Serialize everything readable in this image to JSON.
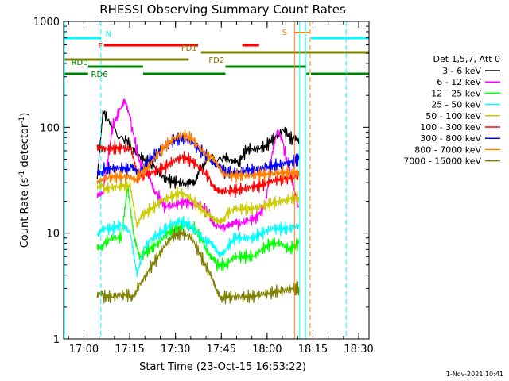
{
  "chart_data": {
    "type": "line",
    "title": "RHESSI Observing Summary Count Rates",
    "xlabel": "Start Time (23-Oct-15 16:53:22)",
    "ylabel_main": "Count Rate (s",
    "ylabel_sup1": "-1",
    "ylabel_mid": " detector",
    "ylabel_sup2": "-1",
    "ylabel_end": ")",
    "x_unit": "minutes since 16:53:22",
    "xlim": [
      0,
      100
    ],
    "ylim": [
      1,
      1000
    ],
    "y_scale": "log",
    "x_ticks": [
      {
        "v": 6.63,
        "label": "17:00"
      },
      {
        "v": 21.63,
        "label": "17:15"
      },
      {
        "v": 36.63,
        "label": "17:30"
      },
      {
        "v": 51.63,
        "label": "17:45"
      },
      {
        "v": 66.63,
        "label": "18:00"
      },
      {
        "v": 81.63,
        "label": "18:15"
      },
      {
        "v": 96.63,
        "label": "18:30"
      }
    ],
    "y_ticks": [
      {
        "v": 1,
        "label": "1"
      },
      {
        "v": 10,
        "label": "10"
      },
      {
        "v": 100,
        "label": "100"
      },
      {
        "v": 1000,
        "label": "1000"
      }
    ],
    "legend_title": "Det 1,5,7, Att 0",
    "series": [
      {
        "name": "3 - 6 keV",
        "color": "#000000",
        "segments": [
          [
            [
              11,
              30
            ],
            [
              13,
              140
            ],
            [
              16,
              100
            ],
            [
              20,
              80
            ],
            [
              23,
              60
            ],
            [
              26,
              50
            ],
            [
              29,
              45
            ],
            [
              32,
              35
            ],
            [
              35,
              31
            ],
            [
              38,
              30
            ],
            [
              41,
              29
            ],
            [
              43,
              27
            ],
            [
              45,
              40
            ],
            [
              48,
              55
            ],
            [
              52,
              53
            ],
            [
              55,
              48
            ],
            [
              57,
              45
            ],
            [
              60,
              62
            ],
            [
              63,
              62
            ],
            [
              66,
              65
            ],
            [
              69,
              80
            ],
            [
              72,
              95
            ],
            [
              75,
              75
            ],
            [
              77,
              70
            ]
          ]
        ]
      },
      {
        "name": "6 - 12 keV",
        "color": "#ff00ff",
        "segments": [
          [
            [
              11,
              22
            ],
            [
              13,
              25
            ],
            [
              16,
              100
            ],
            [
              19,
              160
            ],
            [
              20,
              180
            ],
            [
              22,
              110
            ],
            [
              25,
              45
            ],
            [
              28,
              35
            ],
            [
              30,
              25
            ],
            [
              33,
              18
            ],
            [
              36,
              18
            ],
            [
              39,
              20
            ],
            [
              42,
              19
            ],
            [
              45,
              18
            ],
            [
              48,
              15
            ],
            [
              50,
              12
            ],
            [
              53,
              11
            ],
            [
              55,
              11
            ],
            [
              57,
              12
            ],
            [
              60,
              13
            ],
            [
              63,
              14
            ],
            [
              66,
              18
            ],
            [
              68,
              50
            ],
            [
              70,
              85
            ],
            [
              72,
              65
            ],
            [
              75,
              30
            ],
            [
              77,
              18
            ]
          ]
        ]
      },
      {
        "name": "12 - 25 keV",
        "color": "#00ff00",
        "segments": [
          [
            [
              11,
              8
            ],
            [
              13,
              8
            ],
            [
              16,
              9
            ],
            [
              19,
              9
            ],
            [
              21,
              25
            ],
            [
              23,
              9
            ],
            [
              25,
              6
            ],
            [
              28,
              7
            ],
            [
              31,
              8
            ],
            [
              34,
              10
            ],
            [
              37,
              11
            ],
            [
              40,
              12
            ],
            [
              43,
              11
            ],
            [
              46,
              8
            ],
            [
              48,
              6
            ],
            [
              50,
              5
            ],
            [
              53,
              5
            ],
            [
              56,
              6
            ],
            [
              59,
              6
            ],
            [
              62,
              6
            ],
            [
              65,
              7
            ],
            [
              68,
              8
            ],
            [
              71,
              8
            ],
            [
              74,
              7
            ],
            [
              77,
              8
            ]
          ]
        ]
      },
      {
        "name": "25 - 50 keV",
        "color": "#00ffff",
        "segments": [
          [
            [
              11,
              10
            ],
            [
              13,
              11
            ],
            [
              16,
              11
            ],
            [
              19,
              12
            ],
            [
              22,
              10
            ],
            [
              24,
              4.5
            ],
            [
              26,
              7
            ],
            [
              29,
              9
            ],
            [
              32,
              10
            ],
            [
              35,
              12
            ],
            [
              38,
              13
            ],
            [
              41,
              12
            ],
            [
              44,
              10
            ],
            [
              47,
              8
            ],
            [
              49,
              7
            ],
            [
              51,
              6
            ],
            [
              53,
              7
            ],
            [
              56,
              9
            ],
            [
              59,
              9
            ],
            [
              62,
              9
            ],
            [
              65,
              10
            ],
            [
              68,
              11
            ],
            [
              71,
              11
            ],
            [
              74,
              11
            ],
            [
              77,
              12
            ]
          ]
        ]
      },
      {
        "name": "50 - 100 keV",
        "color": "#cccc00",
        "segments": [
          [
            [
              11,
              25
            ],
            [
              13,
              26
            ],
            [
              16,
              27
            ],
            [
              19,
              28
            ],
            [
              22,
              28
            ],
            [
              24,
              12
            ],
            [
              26,
              15
            ],
            [
              29,
              17
            ],
            [
              32,
              20
            ],
            [
              35,
              22
            ],
            [
              38,
              24
            ],
            [
              41,
              22
            ],
            [
              44,
              18
            ],
            [
              47,
              15
            ],
            [
              49,
              14
            ],
            [
              51,
              14
            ],
            [
              53,
              15
            ],
            [
              56,
              17
            ],
            [
              59,
              17
            ],
            [
              62,
              17
            ],
            [
              65,
              18
            ],
            [
              68,
              19
            ],
            [
              71,
              20
            ],
            [
              74,
              21
            ],
            [
              77,
              22
            ]
          ]
        ]
      },
      {
        "name": "100 - 300 keV",
        "color": "#ff0000",
        "segments": [
          [
            [
              11,
              60
            ],
            [
              13,
              62
            ],
            [
              16,
              63
            ],
            [
              19,
              64
            ],
            [
              22,
              62
            ],
            [
              24,
              34
            ],
            [
              27,
              36
            ],
            [
              30,
              38
            ],
            [
              33,
              42
            ],
            [
              36,
              48
            ],
            [
              39,
              52
            ],
            [
              42,
              48
            ],
            [
              45,
              40
            ],
            [
              48,
              33
            ],
            [
              50,
              28
            ],
            [
              52,
              25
            ],
            [
              55,
              25
            ],
            [
              58,
              26
            ],
            [
              61,
              27
            ],
            [
              64,
              28
            ],
            [
              67,
              30
            ],
            [
              70,
              32
            ],
            [
              73,
              33
            ],
            [
              76,
              34
            ],
            [
              77,
              35
            ]
          ]
        ]
      },
      {
        "name": "300 - 800 keV",
        "color": "#0000ff",
        "segments": [
          [
            [
              11,
              40
            ],
            [
              13,
              40
            ],
            [
              16,
              41
            ],
            [
              19,
              41
            ],
            [
              22,
              40
            ],
            [
              24,
              36
            ],
            [
              27,
              45
            ],
            [
              30,
              55
            ],
            [
              33,
              65
            ],
            [
              36,
              75
            ],
            [
              39,
              78
            ],
            [
              42,
              72
            ],
            [
              45,
              60
            ],
            [
              48,
              50
            ],
            [
              50,
              42
            ],
            [
              52,
              38
            ],
            [
              55,
              38
            ],
            [
              58,
              38
            ],
            [
              61,
              39
            ],
            [
              64,
              40
            ],
            [
              67,
              42
            ],
            [
              70,
              44
            ],
            [
              73,
              46
            ],
            [
              76,
              48
            ],
            [
              77,
              50
            ]
          ]
        ]
      },
      {
        "name": "800 - 7000 keV",
        "color": "#ff8000",
        "segments": [
          [
            [
              11,
              33
            ],
            [
              13,
              33
            ],
            [
              16,
              34
            ],
            [
              19,
              34
            ],
            [
              22,
              34
            ],
            [
              24,
              34
            ],
            [
              27,
              40
            ],
            [
              30,
              52
            ],
            [
              33,
              65
            ],
            [
              36,
              78
            ],
            [
              39,
              85
            ],
            [
              42,
              78
            ],
            [
              45,
              62
            ],
            [
              48,
              50
            ],
            [
              50,
              42
            ],
            [
              52,
              36
            ],
            [
              55,
              35
            ],
            [
              58,
              35
            ],
            [
              61,
              35
            ],
            [
              64,
              36
            ],
            [
              67,
              36
            ],
            [
              70,
              37
            ],
            [
              73,
              37
            ],
            [
              76,
              37
            ],
            [
              77,
              37
            ]
          ]
        ]
      },
      {
        "name": "7000 - 15000 keV",
        "color": "#808000",
        "segments": [
          [
            [
              11,
              2.5
            ],
            [
              13,
              2.5
            ],
            [
              16,
              2.5
            ],
            [
              19,
              2.6
            ],
            [
              22,
              2.6
            ],
            [
              24,
              3
            ],
            [
              27,
              4
            ],
            [
              30,
              5.5
            ],
            [
              33,
              7.5
            ],
            [
              36,
              9.5
            ],
            [
              39,
              10
            ],
            [
              42,
              9
            ],
            [
              45,
              6
            ],
            [
              48,
              4
            ],
            [
              50,
              3
            ],
            [
              52,
              2.5
            ],
            [
              55,
              2.5
            ],
            [
              58,
              2.5
            ],
            [
              61,
              2.5
            ],
            [
              64,
              2.6
            ],
            [
              67,
              2.7
            ],
            [
              70,
              2.8
            ],
            [
              73,
              2.9
            ],
            [
              76,
              3
            ],
            [
              77,
              3
            ]
          ]
        ]
      }
    ],
    "state_bars": [
      {
        "label": "N",
        "color": "#00ffff",
        "y": 0,
        "label_at": 13.7,
        "segments": [
          [
            0,
            12.3
          ],
          [
            81,
            100
          ]
        ]
      },
      {
        "label": "F",
        "color": "#ff0000",
        "y": 1,
        "label_at": 11.3,
        "segments": [
          [
            13.2,
            44
          ],
          [
            58.5,
            64
          ]
        ]
      },
      {
        "label": "FD1",
        "color": "#808000",
        "y": 2,
        "label_at": 38.5,
        "segments": [
          [
            45,
            100
          ]
        ]
      },
      {
        "label": "FD2",
        "color": "#808000",
        "y": 3,
        "label_at": 47.5,
        "segments": [
          [
            0,
            41
          ]
        ]
      },
      {
        "label": "RD0",
        "color": "#008000",
        "y": 4,
        "label_at": 2.5,
        "segments": [
          [
            8,
            26
          ],
          [
            53,
            79.5
          ]
        ]
      },
      {
        "label": "RD6",
        "color": "#008000",
        "y": 5,
        "label_at": 9.0,
        "segments": [
          [
            0,
            8
          ],
          [
            26,
            53
          ],
          [
            79.5,
            80.5
          ],
          [
            81,
            100
          ]
        ]
      }
    ],
    "saa": {
      "label": "S",
      "color": "#ff8000",
      "from": 75.7,
      "to": 80.5
    },
    "vertical_lines": [
      {
        "x": 0.3,
        "color": "#00ffff",
        "dash": false
      },
      {
        "x": 12.2,
        "color": "#00ffff",
        "dash": true
      },
      {
        "x": 75.6,
        "color": "#ff8000",
        "dash": false
      },
      {
        "x": 77.3,
        "color": "#00ffff",
        "dash": false
      },
      {
        "x": 79.2,
        "color": "#00ffff",
        "dash": false
      },
      {
        "x": 80.7,
        "color": "#ff8000",
        "dash": true
      },
      {
        "x": 92.5,
        "color": "#00ffff",
        "dash": true
      }
    ],
    "timestamp": "1-Nov-2021 10:41"
  }
}
